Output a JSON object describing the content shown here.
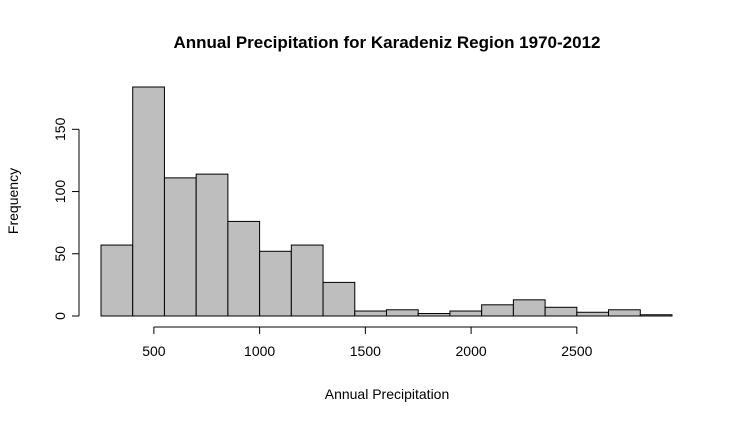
{
  "chart_data": {
    "type": "bar",
    "subtype": "histogram",
    "title": "Annual Precipitation for Karadeniz Region 1970-2012",
    "xlabel": "Annual Precipitation",
    "ylabel": "Frequency",
    "bin_width": 150,
    "bins": [
      {
        "start": 250,
        "end": 400,
        "count": 57
      },
      {
        "start": 400,
        "end": 550,
        "count": 184
      },
      {
        "start": 550,
        "end": 700,
        "count": 111
      },
      {
        "start": 700,
        "end": 850,
        "count": 114
      },
      {
        "start": 850,
        "end": 1000,
        "count": 76
      },
      {
        "start": 1000,
        "end": 1150,
        "count": 52
      },
      {
        "start": 1150,
        "end": 1300,
        "count": 57
      },
      {
        "start": 1300,
        "end": 1450,
        "count": 27
      },
      {
        "start": 1450,
        "end": 1600,
        "count": 4
      },
      {
        "start": 1600,
        "end": 1750,
        "count": 5
      },
      {
        "start": 1750,
        "end": 1900,
        "count": 2
      },
      {
        "start": 1900,
        "end": 2050,
        "count": 4
      },
      {
        "start": 2050,
        "end": 2200,
        "count": 9
      },
      {
        "start": 2200,
        "end": 2350,
        "count": 13
      },
      {
        "start": 2350,
        "end": 2500,
        "count": 7
      },
      {
        "start": 2500,
        "end": 2650,
        "count": 3
      },
      {
        "start": 2650,
        "end": 2800,
        "count": 5
      },
      {
        "start": 2800,
        "end": 2950,
        "count": 1
      }
    ],
    "xticks": [
      500,
      1000,
      1500,
      2000,
      2500
    ],
    "yticks": [
      0,
      50,
      100,
      150
    ],
    "xlim": [
      250,
      2950
    ],
    "ylim": [
      0,
      184
    ],
    "grid": false,
    "legend": "none",
    "colors": {
      "bar_fill": "#bebebe",
      "bar_stroke": "#000000"
    }
  }
}
